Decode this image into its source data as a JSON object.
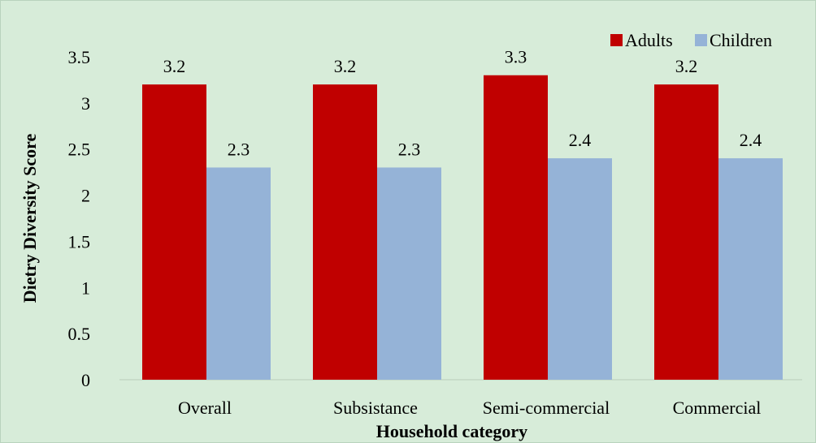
{
  "chart_data": {
    "type": "bar",
    "categories": [
      "Overall",
      "Subsistance",
      "Semi-commercial",
      "Commercial"
    ],
    "series": [
      {
        "name": "Adults",
        "values": [
          3.2,
          3.2,
          3.3,
          3.2
        ],
        "labels": [
          "3.2",
          "3.2",
          "3.3",
          "3.2"
        ],
        "color": "#c00000"
      },
      {
        "name": "Children",
        "values": [
          2.3,
          2.3,
          2.4,
          2.4
        ],
        "labels": [
          "2.3",
          "2.3",
          "2.4",
          "2.4"
        ],
        "color": "#95b3d7"
      }
    ],
    "title": "",
    "xlabel": "Household category",
    "ylabel": "Dietry Diversity Score",
    "ylim": [
      0,
      3.5
    ],
    "yticks": [
      "0",
      "0.5",
      "1",
      "1.5",
      "2",
      "2.5",
      "3",
      "3.5"
    ],
    "grid": false,
    "legend_position": "top-right",
    "background_color": "#d7ecd9"
  }
}
